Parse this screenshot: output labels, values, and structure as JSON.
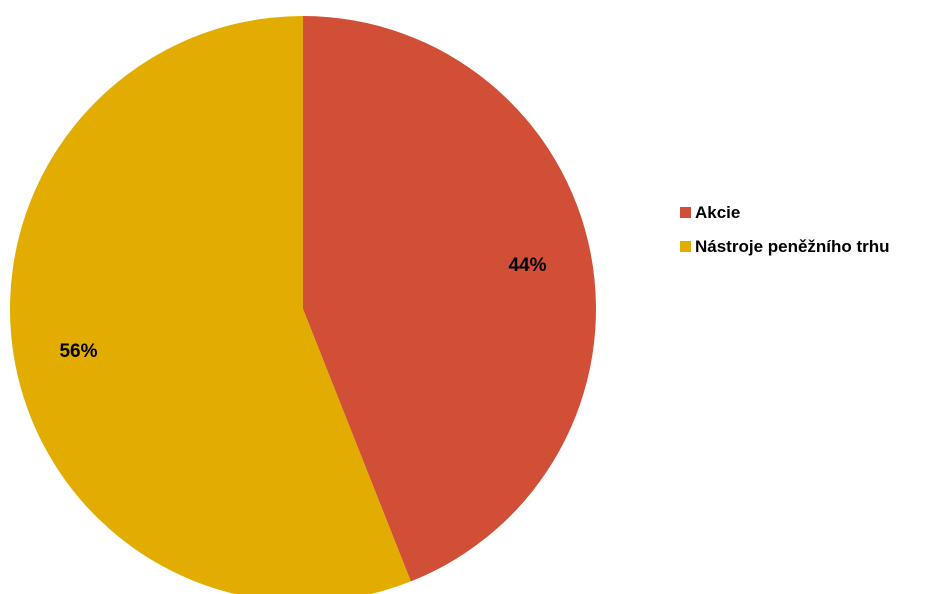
{
  "chart_data": {
    "type": "pie",
    "title": "",
    "slices": [
      {
        "label": "Akcie",
        "value": 44,
        "display": "44%",
        "color": "#D14F37"
      },
      {
        "label": "Nástroje peněžního trhu",
        "value": 56,
        "display": "56%",
        "color": "#E2AC00"
      }
    ],
    "start_angle_deg": 0,
    "direction": "clockwise",
    "legend_position": "right"
  }
}
